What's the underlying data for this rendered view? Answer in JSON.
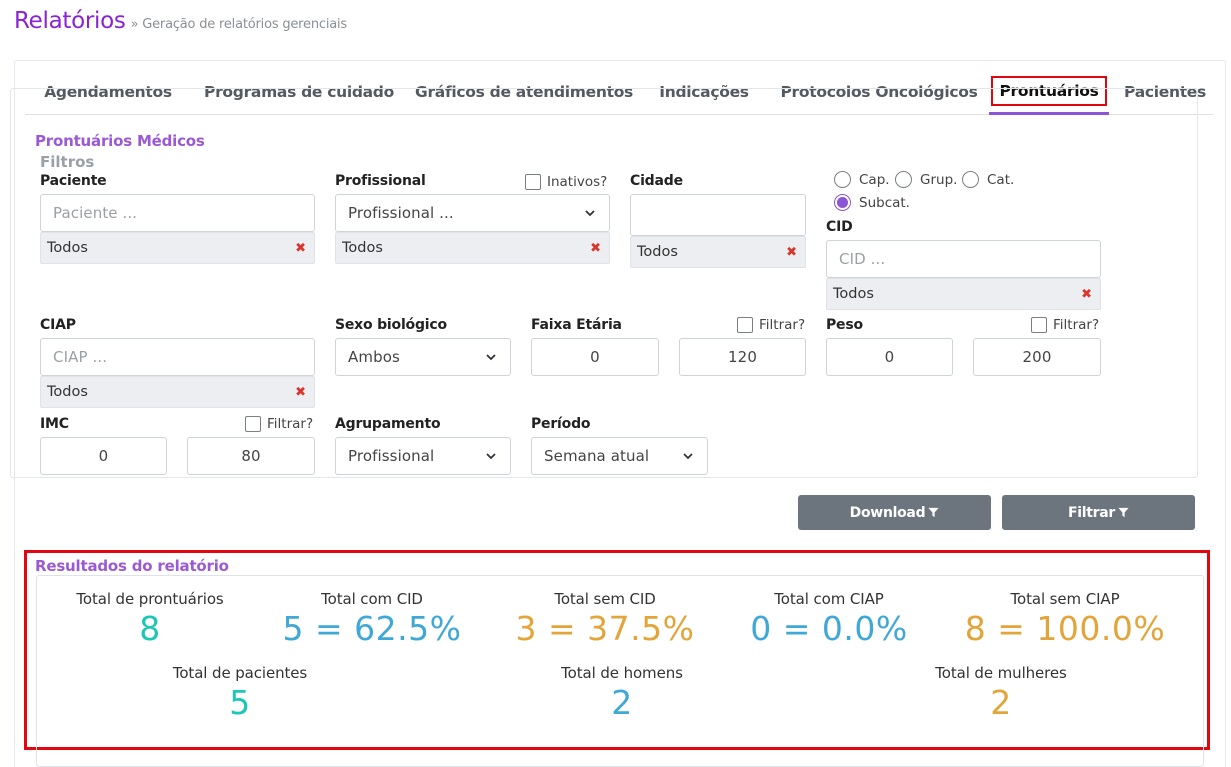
{
  "header": {
    "title": "Relatórios",
    "subtitle": "» Geração de relatórios gerenciais"
  },
  "tabs": [
    {
      "label": "Agendamentos"
    },
    {
      "label": "Programas de cuidado"
    },
    {
      "label": "Gráficos de atendimentos"
    },
    {
      "label": "Indicações"
    },
    {
      "label": "Protocolos Oncológicos"
    },
    {
      "label": "Prontuários",
      "active": true
    },
    {
      "label": "Pacientes"
    }
  ],
  "section_title": "Prontuários Médicos",
  "filters": {
    "legend": "Filtros",
    "paciente": {
      "label": "Paciente",
      "placeholder": "Paciente ...",
      "tag": "Todos"
    },
    "profissional": {
      "label": "Profissional",
      "value": "Profissional ...",
      "tag": "Todos",
      "inativos_label": "Inativos?"
    },
    "cidade": {
      "label": "Cidade",
      "value": "",
      "tag": "Todos"
    },
    "cid_scope": {
      "cap": "Cap.",
      "grup": "Grup.",
      "cat": "Cat.",
      "subcat": "Subcat.",
      "selected": "Subcat."
    },
    "cid": {
      "label": "CID",
      "placeholder": "CID ...",
      "tag": "Todos"
    },
    "ciap": {
      "label": "CIAP",
      "placeholder": "CIAP ...",
      "tag": "Todos"
    },
    "sexo": {
      "label": "Sexo biológico",
      "value": "Ambos"
    },
    "faixa": {
      "label": "Faixa Etária",
      "min": "0",
      "max": "120",
      "filter_label": "Filtrar?"
    },
    "peso": {
      "label": "Peso",
      "min": "0",
      "max": "200",
      "filter_label": "Filtrar?"
    },
    "imc": {
      "label": "IMC",
      "min": "0",
      "max": "80",
      "filter_label": "Filtrar?"
    },
    "agrupamento": {
      "label": "Agrupamento",
      "value": "Profissional"
    },
    "periodo": {
      "label": "Período",
      "value": "Semana atual"
    }
  },
  "buttons": {
    "download": "Download",
    "filtrar": "Filtrar"
  },
  "results": {
    "title": "Resultados do relatório",
    "total_prontuarios": {
      "label": "Total de prontuários",
      "value": "8"
    },
    "total_com_cid": {
      "label": "Total com CID",
      "value": "5 = 62.5%"
    },
    "total_sem_cid": {
      "label": "Total sem CID",
      "value": "3 = 37.5%"
    },
    "total_com_ciap": {
      "label": "Total com CIAP",
      "value": "0 = 0.0%"
    },
    "total_sem_ciap": {
      "label": "Total sem CIAP",
      "value": "8 = 100.0%"
    },
    "total_pacientes": {
      "label": "Total de pacientes",
      "value": "5"
    },
    "total_homens": {
      "label": "Total de homens",
      "value": "2"
    },
    "total_mulheres": {
      "label": "Total de mulheres",
      "value": "2"
    }
  },
  "colors": {
    "accent": "#8a22d6",
    "teal": "#1cc8b4",
    "blue": "#3fa8d6",
    "orange": "#e3a53a",
    "highlight": "#e3060e"
  }
}
